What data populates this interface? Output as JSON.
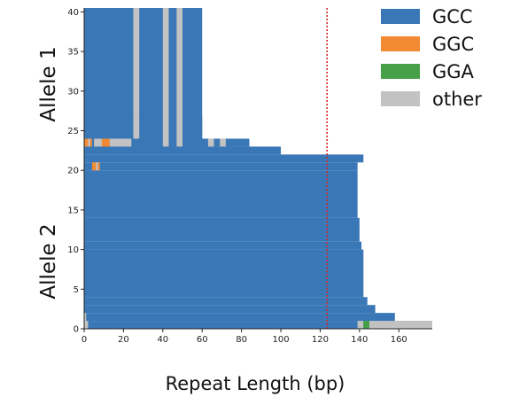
{
  "chart_data": {
    "type": "heatmap",
    "xlabel": "Repeat Length (bp)",
    "group_labels": [
      "Allele 1",
      "Allele 2"
    ],
    "xlim": [
      0,
      177
    ],
    "ylim": [
      0,
      40.5
    ],
    "x_ticks": [
      0,
      20,
      40,
      60,
      80,
      100,
      120,
      140,
      160
    ],
    "y_ticks": [
      0,
      5,
      10,
      15,
      20,
      25,
      30,
      35,
      40
    ],
    "reference_line_x": 123.5,
    "reference_line_color": "#d62728",
    "legend_position": "top-right",
    "categories": [
      {
        "name": "GCC",
        "color": "#3a77b6"
      },
      {
        "name": "GGC",
        "color": "#f28a33"
      },
      {
        "name": "GGA",
        "color": "#45a048"
      },
      {
        "name": "other",
        "color": "#c2c2c2"
      }
    ],
    "reads": [
      {
        "y_from": 0,
        "y_to": 1,
        "length": 177,
        "segments": [
          {
            "from": 0,
            "to": 2,
            "category": "other"
          },
          {
            "from": 139,
            "to": 142,
            "category": "other"
          },
          {
            "from": 142,
            "to": 145,
            "category": "GGA"
          },
          {
            "from": 145,
            "to": 177,
            "category": "other"
          }
        ]
      },
      {
        "y_from": 1,
        "y_to": 2,
        "length": 158,
        "segments": [
          {
            "from": 0,
            "to": 1,
            "category": "other"
          }
        ]
      },
      {
        "y_from": 2,
        "y_to": 3,
        "length": 148,
        "segments": []
      },
      {
        "y_from": 3,
        "y_to": 4,
        "length": 144,
        "segments": []
      },
      {
        "y_from": 4,
        "y_to": 10,
        "length": 142,
        "segments": []
      },
      {
        "y_from": 10,
        "y_to": 11,
        "length": 141,
        "segments": []
      },
      {
        "y_from": 11,
        "y_to": 14,
        "length": 140,
        "segments": []
      },
      {
        "y_from": 14,
        "y_to": 20,
        "length": 139,
        "segments": []
      },
      {
        "y_from": 20,
        "y_to": 21,
        "length": 139,
        "segments": [
          {
            "from": 4,
            "to": 8,
            "category": "GGC"
          },
          {
            "from": 6,
            "to": 7,
            "category": "other"
          }
        ]
      },
      {
        "y_from": 21,
        "y_to": 22,
        "length": 142,
        "segments": []
      },
      {
        "y_from": 22,
        "y_to": 23,
        "length": 100,
        "segments": []
      },
      {
        "y_from": 23,
        "y_to": 24,
        "length": 63,
        "segments": [
          {
            "from": 0,
            "to": 4,
            "category": "GGC"
          },
          {
            "from": 2,
            "to": 3,
            "category": "other"
          },
          {
            "from": 5,
            "to": 9,
            "category": "other"
          },
          {
            "from": 9,
            "to": 13,
            "category": "GGC"
          },
          {
            "from": 13,
            "to": 24,
            "category": "other"
          },
          {
            "from": 40,
            "to": 43,
            "category": "other"
          },
          {
            "from": 47,
            "to": 50,
            "category": "other"
          }
        ]
      },
      {
        "y_from": 23,
        "y_to": 24,
        "length": 84,
        "segments": [
          {
            "from": 63,
            "to": 66,
            "category": "other"
          },
          {
            "from": 69,
            "to": 72,
            "category": "other"
          }
        ]
      },
      {
        "y_from": 24,
        "y_to": 40.5,
        "length": 60,
        "segments": [
          {
            "from": 25,
            "to": 28,
            "category": "other"
          },
          {
            "from": 40,
            "to": 43,
            "category": "other"
          },
          {
            "from": 47,
            "to": 50,
            "category": "other"
          }
        ]
      },
      {
        "y_from": 24,
        "y_to": 27,
        "length": 60,
        "segments": []
      }
    ]
  }
}
